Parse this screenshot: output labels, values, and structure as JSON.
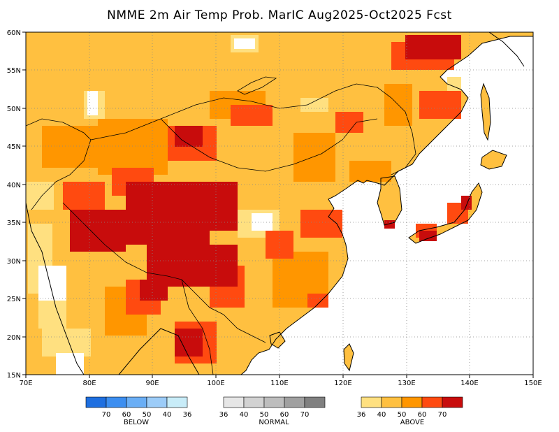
{
  "title": "NMME 2m Air Temp Prob. MarIC  Aug2025-Oct2025 Fcst",
  "map": {
    "lon_range": [
      70,
      150
    ],
    "lat_range": [
      15,
      60
    ],
    "lon_ticks": [
      "70E",
      "80E",
      "90E",
      "100E",
      "110E",
      "120E",
      "130E",
      "140E",
      "150E"
    ],
    "lat_ticks": [
      "15N",
      "20N",
      "25N",
      "30N",
      "35N",
      "40N",
      "45N",
      "50N",
      "55N",
      "60N"
    ],
    "grid": "dotted",
    "ocean_color": "#ffffff"
  },
  "legend": {
    "below": {
      "label": "BELOW",
      "ticks": [
        "70",
        "60",
        "50",
        "40",
        "36"
      ],
      "colors": [
        "#1e6fe0",
        "#3c8ef0",
        "#6aaef5",
        "#9cccf8",
        "#c8ecf8"
      ]
    },
    "normal": {
      "label": "NORMAL",
      "ticks": [
        "36",
        "40",
        "50",
        "60",
        "70"
      ],
      "colors": [
        "#e6e6e6",
        "#d2d2d2",
        "#bdbdbd",
        "#a0a0a0",
        "#808080"
      ]
    },
    "above": {
      "label": "ABOVE",
      "ticks": [
        "36",
        "40",
        "50",
        "60",
        "70"
      ],
      "colors": [
        "#ffe080",
        "#ffc040",
        "#ff9600",
        "#ff4a10",
        "#c80c0c"
      ]
    }
  }
}
